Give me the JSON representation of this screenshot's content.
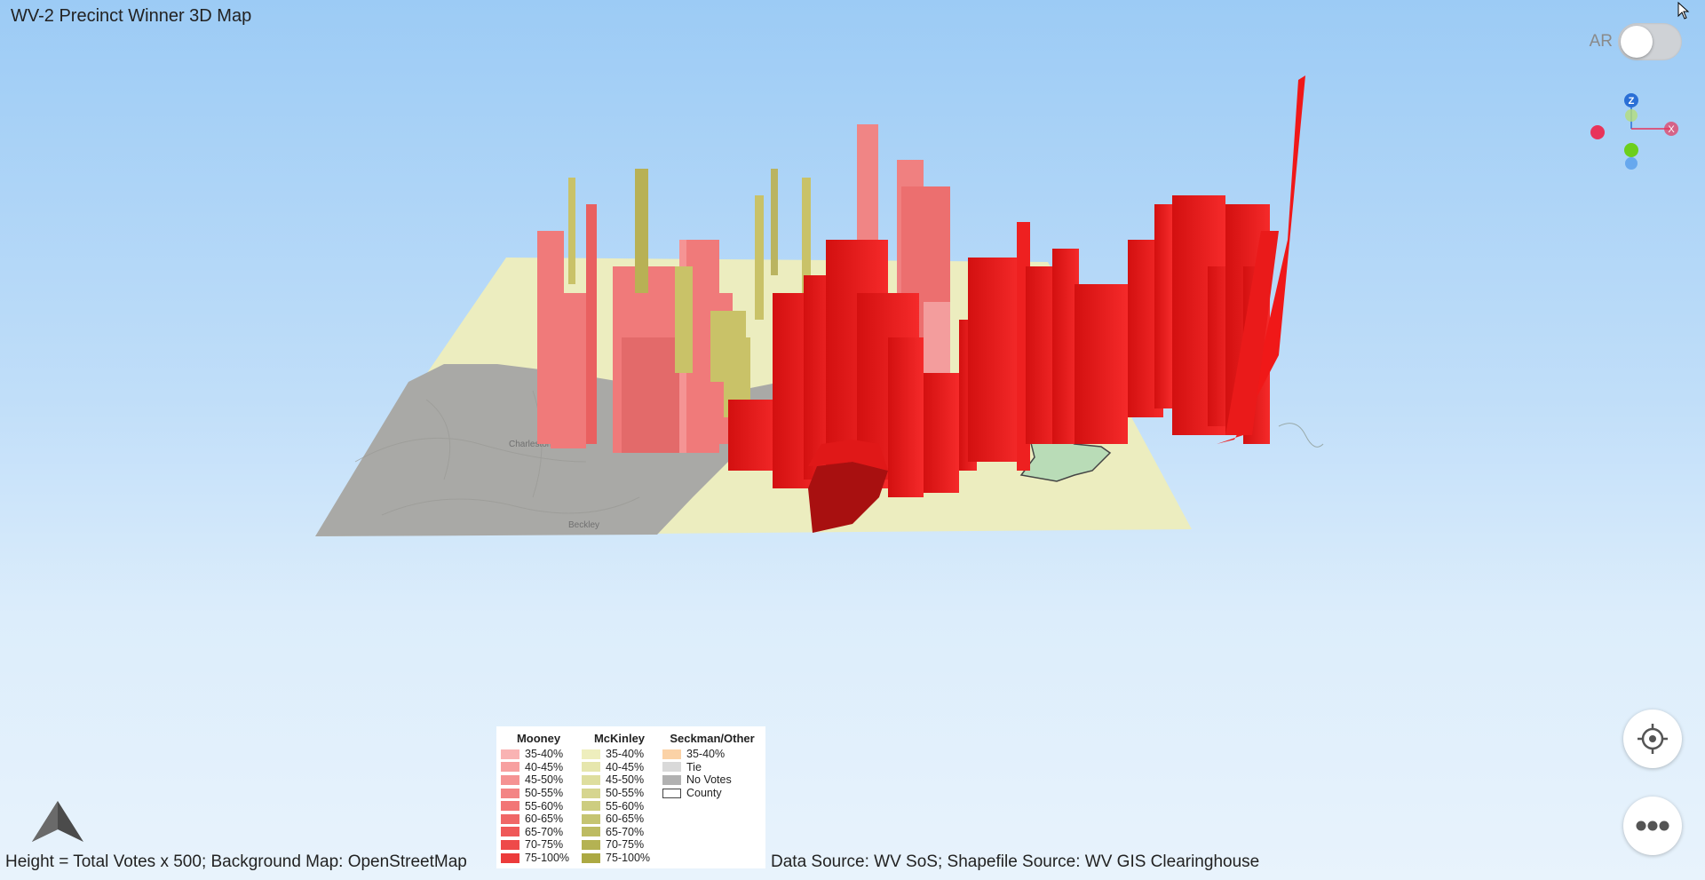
{
  "app": {
    "title": "WV-2 Precinct Winner 3D Map"
  },
  "ar_toggle": {
    "label": "AR",
    "state": "off"
  },
  "gizmo": {
    "z_label": "Z",
    "x_label": "X"
  },
  "map": {
    "labels": [
      "Charleston",
      "Beckley"
    ],
    "colors": {
      "ground_base": "#ecedbf",
      "no_votes": "#a9a9a6",
      "county_green": "#b9dcb7",
      "mooney_light": "#f07878",
      "mooney_strong": "#f01818",
      "mckinley": "#c9c268"
    }
  },
  "legend": {
    "columns": [
      {
        "title": "Mooney",
        "items": [
          {
            "label": "35-40%",
            "color": "#f9b3b3"
          },
          {
            "label": "40-45%",
            "color": "#f7a0a0"
          },
          {
            "label": "45-50%",
            "color": "#f59393"
          },
          {
            "label": "50-55%",
            "color": "#f38585"
          },
          {
            "label": "55-60%",
            "color": "#f27676"
          },
          {
            "label": "60-65%",
            "color": "#f06767"
          },
          {
            "label": "65-70%",
            "color": "#ef5858"
          },
          {
            "label": "70-75%",
            "color": "#ee4a4a"
          },
          {
            "label": "75-100%",
            "color": "#ec3b3b"
          }
        ]
      },
      {
        "title": "McKinley",
        "items": [
          {
            "label": "35-40%",
            "color": "#eeeebd"
          },
          {
            "label": "40-45%",
            "color": "#e6e6ad"
          },
          {
            "label": "45-50%",
            "color": "#dede9e"
          },
          {
            "label": "50-55%",
            "color": "#d6d58f"
          },
          {
            "label": "55-60%",
            "color": "#cdcd80"
          },
          {
            "label": "60-65%",
            "color": "#c5c471"
          },
          {
            "label": "65-70%",
            "color": "#bdbb62"
          },
          {
            "label": "70-75%",
            "color": "#b4b253"
          },
          {
            "label": "75-100%",
            "color": "#aca943"
          }
        ]
      },
      {
        "title": "Seckman/Other",
        "items": [
          {
            "label": "35-40%",
            "color": "#fbd2a6"
          },
          {
            "label": "Tie",
            "color": "#d9d9d9"
          },
          {
            "label": "No Votes",
            "color": "#b1b1b1"
          },
          {
            "label": "County",
            "color": "#ffffff"
          }
        ]
      }
    ]
  },
  "footer": {
    "left": "Height = Total Votes x 500; Background Map: OpenStreetMap",
    "right": "Data Source: WV SoS; Shapefile Source: WV GIS Clearinghouse"
  }
}
